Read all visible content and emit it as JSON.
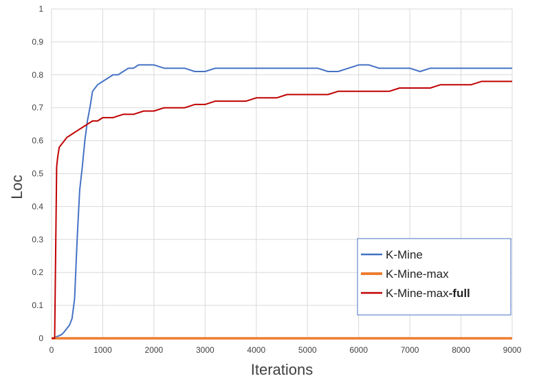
{
  "chart_data": {
    "type": "line",
    "xlabel": "Iterations",
    "ylabel": "Loc",
    "xlim": [
      0,
      9000
    ],
    "ylim": [
      0,
      1
    ],
    "x_ticks": [
      "0",
      "1000",
      "2000",
      "3000",
      "4000",
      "5000",
      "6000",
      "7000",
      "8000",
      "9000"
    ],
    "y_ticks": [
      "0",
      "0.1",
      "0.2",
      "0.3",
      "0.4",
      "0.5",
      "0.6",
      "0.7",
      "0.8",
      "0.9",
      "1"
    ],
    "grid": true,
    "legend_position": "bottom-right",
    "series": [
      {
        "name": "K-Mine",
        "color": "#4472C4",
        "x": [
          0,
          50,
          100,
          150,
          200,
          250,
          300,
          350,
          400,
          450,
          500,
          550,
          600,
          650,
          700,
          750,
          800,
          900,
          1000,
          1100,
          1200,
          1300,
          1400,
          1500,
          1600,
          1700,
          1800,
          1900,
          2000,
          2200,
          2400,
          2600,
          2800,
          3000,
          3200,
          3400,
          3600,
          3800,
          4000,
          4200,
          4400,
          4600,
          4800,
          5000,
          5200,
          5400,
          5600,
          5800,
          6000,
          6200,
          6400,
          6600,
          6800,
          7000,
          7200,
          7400,
          7600,
          7800,
          8000,
          8200,
          8400,
          8600,
          8800,
          9000
        ],
        "values": [
          0,
          0,
          0.005,
          0.008,
          0.012,
          0.02,
          0.03,
          0.04,
          0.06,
          0.12,
          0.3,
          0.45,
          0.52,
          0.6,
          0.66,
          0.7,
          0.75,
          0.77,
          0.78,
          0.79,
          0.8,
          0.8,
          0.81,
          0.82,
          0.82,
          0.83,
          0.83,
          0.83,
          0.83,
          0.82,
          0.82,
          0.82,
          0.81,
          0.81,
          0.82,
          0.82,
          0.82,
          0.82,
          0.82,
          0.82,
          0.82,
          0.82,
          0.82,
          0.82,
          0.82,
          0.81,
          0.81,
          0.82,
          0.83,
          0.83,
          0.82,
          0.82,
          0.82,
          0.82,
          0.81,
          0.82,
          0.82,
          0.82,
          0.82,
          0.82,
          0.82,
          0.82,
          0.82,
          0.82
        ]
      },
      {
        "name": "K-Mine-max",
        "color": "#ED7D31",
        "x": [
          0,
          9000
        ],
        "values": [
          0,
          0
        ]
      },
      {
        "name": "K-Mine-max-full",
        "color": "#C00000",
        "x": [
          0,
          60,
          100,
          120,
          150,
          200,
          250,
          300,
          400,
          500,
          600,
          700,
          800,
          900,
          1000,
          1200,
          1400,
          1600,
          1800,
          2000,
          2200,
          2400,
          2600,
          2800,
          3000,
          3200,
          3400,
          3600,
          3800,
          4000,
          4200,
          4400,
          4600,
          4800,
          5000,
          5200,
          5400,
          5600,
          5800,
          6000,
          6200,
          6400,
          6600,
          6800,
          7000,
          7200,
          7400,
          7600,
          7800,
          8000,
          8200,
          8400,
          8600,
          8800,
          9000
        ],
        "values": [
          0,
          0,
          0.52,
          0.55,
          0.58,
          0.59,
          0.6,
          0.61,
          0.62,
          0.63,
          0.64,
          0.65,
          0.66,
          0.66,
          0.67,
          0.67,
          0.68,
          0.68,
          0.69,
          0.69,
          0.7,
          0.7,
          0.7,
          0.71,
          0.71,
          0.72,
          0.72,
          0.72,
          0.72,
          0.73,
          0.73,
          0.73,
          0.74,
          0.74,
          0.74,
          0.74,
          0.74,
          0.75,
          0.75,
          0.75,
          0.75,
          0.75,
          0.75,
          0.76,
          0.76,
          0.76,
          0.76,
          0.77,
          0.77,
          0.77,
          0.77,
          0.78,
          0.78,
          0.78,
          0.78
        ]
      }
    ],
    "legend": {
      "items": [
        {
          "label": "K-Mine",
          "suffix": "",
          "color": "#4472C4"
        },
        {
          "label": "K-Mine-max",
          "suffix": "",
          "color": "#ED7D31"
        },
        {
          "label": "K-Mine-max",
          "suffix": "-full",
          "color": "#C00000"
        }
      ]
    }
  }
}
